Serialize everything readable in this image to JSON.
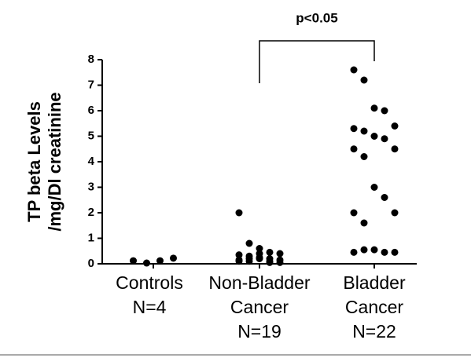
{
  "chart_data": {
    "type": "strip",
    "ylabel": [
      "TP beta Levels",
      "/mg/Dl creatinine"
    ],
    "categories": [
      [
        "Controls",
        "N=4"
      ],
      [
        "Non-Bladder",
        "Cancer",
        "N=19"
      ],
      [
        "Bladder",
        "Cancer",
        "N=22"
      ]
    ],
    "values": [
      [
        0.12,
        0.03,
        0.12,
        0.22
      ],
      [
        2.0,
        0.8,
        0.6,
        0.45,
        0.4,
        0.35,
        0.3,
        0.4,
        0.2,
        0.15,
        0.1,
        0.2,
        0.25,
        0.1,
        0.05,
        0.15,
        0.1,
        0.2,
        0.05
      ],
      [
        7.6,
        7.2,
        6.1,
        6.0,
        5.4,
        5.3,
        5.2,
        5.0,
        4.9,
        4.5,
        4.5,
        4.2,
        3.0,
        2.6,
        2.0,
        2.0,
        1.6,
        0.55,
        0.45,
        0.45,
        0.45,
        0.55
      ]
    ],
    "color": "#000000",
    "ylim": [
      0,
      8
    ],
    "yticks": [
      0,
      1,
      2,
      3,
      4,
      5,
      6,
      7,
      8
    ],
    "annotation": "p<0.05"
  }
}
